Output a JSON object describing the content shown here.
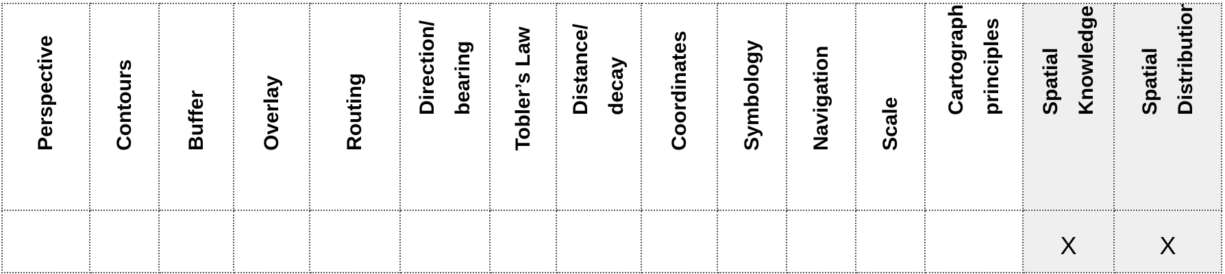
{
  "table": {
    "columns": [
      {
        "label": "Perspective",
        "mark": "",
        "shaded": false
      },
      {
        "label": "Contours",
        "mark": "",
        "shaded": false
      },
      {
        "label": "Buffer",
        "mark": "",
        "shaded": false
      },
      {
        "label": "Overlay",
        "mark": "",
        "shaded": false
      },
      {
        "label": "Routing",
        "mark": "",
        "shaded": false
      },
      {
        "label": "Direction/\nbearing",
        "mark": "",
        "shaded": false
      },
      {
        "label": "Tobler’s Law",
        "mark": "",
        "shaded": false
      },
      {
        "label": "Distance/\ndecay",
        "mark": "",
        "shaded": false
      },
      {
        "label": "Coordinates",
        "mark": "",
        "shaded": false
      },
      {
        "label": "Symbology",
        "mark": "",
        "shaded": false
      },
      {
        "label": "Navigation",
        "mark": "",
        "shaded": false
      },
      {
        "label": "Scale",
        "mark": "",
        "shaded": false
      },
      {
        "label": "Cartographic\nprinciples",
        "mark": "",
        "shaded": false
      },
      {
        "label": "Spatial\nKnowledge",
        "mark": "X",
        "shaded": true
      },
      {
        "label": "Spatial\nDistribution",
        "mark": "X",
        "shaded": true
      }
    ]
  }
}
